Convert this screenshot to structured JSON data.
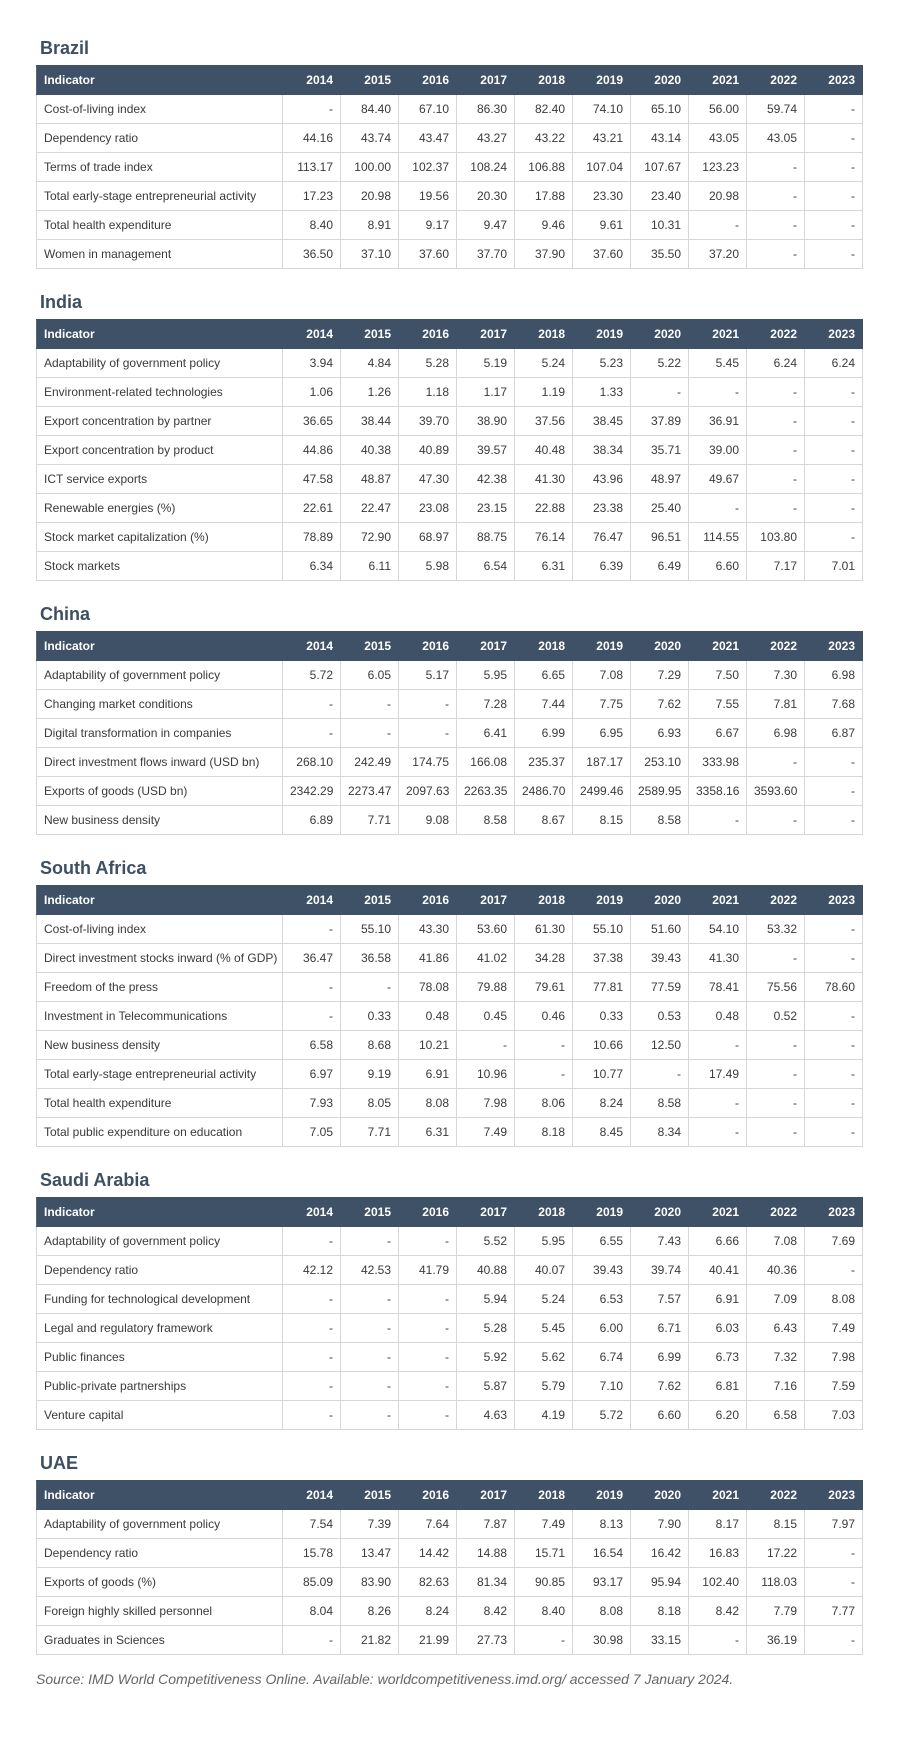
{
  "sections": [
    {
      "title": "Brazil",
      "header": [
        "Indicator",
        "2014",
        "2015",
        "2016",
        "2017",
        "2018",
        "2019",
        "2020",
        "2021",
        "2022",
        "2023"
      ],
      "rows": [
        [
          "Cost-of-living index",
          "-",
          "84.40",
          "67.10",
          "86.30",
          "82.40",
          "74.10",
          "65.10",
          "56.00",
          "59.74",
          "-"
        ],
        [
          "Dependency ratio",
          "44.16",
          "43.74",
          "43.47",
          "43.27",
          "43.22",
          "43.21",
          "43.14",
          "43.05",
          "43.05",
          "-"
        ],
        [
          "Terms of trade index",
          "113.17",
          "100.00",
          "102.37",
          "108.24",
          "106.88",
          "107.04",
          "107.67",
          "123.23",
          "-",
          "-"
        ],
        [
          "Total early-stage entrepreneurial activity",
          "17.23",
          "20.98",
          "19.56",
          "20.30",
          "17.88",
          "23.30",
          "23.40",
          "20.98",
          "-",
          "-"
        ],
        [
          "Total health expenditure",
          "8.40",
          "8.91",
          "9.17",
          "9.47",
          "9.46",
          "9.61",
          "10.31",
          "-",
          "-",
          "-"
        ],
        [
          "Women in management",
          "36.50",
          "37.10",
          "37.60",
          "37.70",
          "37.90",
          "37.60",
          "35.50",
          "37.20",
          "-",
          "-"
        ]
      ]
    },
    {
      "title": "India",
      "header": [
        "Indicator",
        "2014",
        "2015",
        "2016",
        "2017",
        "2018",
        "2019",
        "2020",
        "2021",
        "2022",
        "2023"
      ],
      "rows": [
        [
          "Adaptability of government policy",
          "3.94",
          "4.84",
          "5.28",
          "5.19",
          "5.24",
          "5.23",
          "5.22",
          "5.45",
          "6.24",
          "6.24"
        ],
        [
          "Environment-related technologies",
          "1.06",
          "1.26",
          "1.18",
          "1.17",
          "1.19",
          "1.33",
          "-",
          "-",
          "-",
          "-"
        ],
        [
          "Export concentration by partner",
          "36.65",
          "38.44",
          "39.70",
          "38.90",
          "37.56",
          "38.45",
          "37.89",
          "36.91",
          "-",
          "-"
        ],
        [
          "Export concentration by product",
          "44.86",
          "40.38",
          "40.89",
          "39.57",
          "40.48",
          "38.34",
          "35.71",
          "39.00",
          "-",
          "-"
        ],
        [
          "ICT service exports",
          "47.58",
          "48.87",
          "47.30",
          "42.38",
          "41.30",
          "43.96",
          "48.97",
          "49.67",
          "-",
          "-"
        ],
        [
          "Renewable energies (%)",
          "22.61",
          "22.47",
          "23.08",
          "23.15",
          "22.88",
          "23.38",
          "25.40",
          "-",
          "-",
          "-"
        ],
        [
          "Stock market capitalization (%)",
          "78.89",
          "72.90",
          "68.97",
          "88.75",
          "76.14",
          "76.47",
          "96.51",
          "114.55",
          "103.80",
          "-"
        ],
        [
          "Stock markets",
          "6.34",
          "6.11",
          "5.98",
          "6.54",
          "6.31",
          "6.39",
          "6.49",
          "6.60",
          "7.17",
          "7.01"
        ]
      ]
    },
    {
      "title": "China",
      "header": [
        "Indicator",
        "2014",
        "2015",
        "2016",
        "2017",
        "2018",
        "2019",
        "2020",
        "2021",
        "2022",
        "2023"
      ],
      "rows": [
        [
          "Adaptability of government policy",
          "5.72",
          "6.05",
          "5.17",
          "5.95",
          "6.65",
          "7.08",
          "7.29",
          "7.50",
          "7.30",
          "6.98"
        ],
        [
          "Changing market conditions",
          "-",
          "-",
          "-",
          "7.28",
          "7.44",
          "7.75",
          "7.62",
          "7.55",
          "7.81",
          "7.68"
        ],
        [
          "Digital transformation in companies",
          "-",
          "-",
          "-",
          "6.41",
          "6.99",
          "6.95",
          "6.93",
          "6.67",
          "6.98",
          "6.87"
        ],
        [
          "Direct investment flows inward (USD bn)",
          "268.10",
          "242.49",
          "174.75",
          "166.08",
          "235.37",
          "187.17",
          "253.10",
          "333.98",
          "-",
          "-"
        ],
        [
          "Exports of goods (USD bn)",
          "2342.29",
          "2273.47",
          "2097.63",
          "2263.35",
          "2486.70",
          "2499.46",
          "2589.95",
          "3358.16",
          "3593.60",
          "-"
        ],
        [
          "New business density",
          "6.89",
          "7.71",
          "9.08",
          "8.58",
          "8.67",
          "8.15",
          "8.58",
          "-",
          "-",
          "-"
        ]
      ]
    },
    {
      "title": "South Africa",
      "header": [
        "Indicator",
        "2014",
        "2015",
        "2016",
        "2017",
        "2018",
        "2019",
        "2020",
        "2021",
        "2022",
        "2023"
      ],
      "rows": [
        [
          "Cost-of-living index",
          "-",
          "55.10",
          "43.30",
          "53.60",
          "61.30",
          "55.10",
          "51.60",
          "54.10",
          "53.32",
          "-"
        ],
        [
          "Direct investment stocks inward (% of GDP)",
          "36.47",
          "36.58",
          "41.86",
          "41.02",
          "34.28",
          "37.38",
          "39.43",
          "41.30",
          "-",
          "-"
        ],
        [
          "Freedom of the press",
          "-",
          "-",
          "78.08",
          "79.88",
          "79.61",
          "77.81",
          "77.59",
          "78.41",
          "75.56",
          "78.60"
        ],
        [
          "Investment in Telecommunications",
          "-",
          "0.33",
          "0.48",
          "0.45",
          "0.46",
          "0.33",
          "0.53",
          "0.48",
          "0.52",
          "-"
        ],
        [
          "New business density",
          "6.58",
          "8.68",
          "10.21",
          "-",
          "-",
          "10.66",
          "12.50",
          "-",
          "-",
          "-"
        ],
        [
          "Total early-stage entrepreneurial activity",
          "6.97",
          "9.19",
          "6.91",
          "10.96",
          "-",
          "10.77",
          "-",
          "17.49",
          "-",
          "-"
        ],
        [
          "Total health expenditure",
          "7.93",
          "8.05",
          "8.08",
          "7.98",
          "8.06",
          "8.24",
          "8.58",
          "-",
          "-",
          "-"
        ],
        [
          "Total public expenditure on education",
          "7.05",
          "7.71",
          "6.31",
          "7.49",
          "8.18",
          "8.45",
          "8.34",
          "-",
          "-",
          "-"
        ]
      ]
    },
    {
      "title": "Saudi Arabia",
      "header": [
        "Indicator",
        "2014",
        "2015",
        "2016",
        "2017",
        "2018",
        "2019",
        "2020",
        "2021",
        "2022",
        "2023"
      ],
      "rows": [
        [
          "Adaptability of government policy",
          "-",
          "-",
          "-",
          "5.52",
          "5.95",
          "6.55",
          "7.43",
          "6.66",
          "7.08",
          "7.69"
        ],
        [
          "Dependency ratio",
          "42.12",
          "42.53",
          "41.79",
          "40.88",
          "40.07",
          "39.43",
          "39.74",
          "40.41",
          "40.36",
          "-"
        ],
        [
          "Funding for technological development",
          "-",
          "-",
          "-",
          "5.94",
          "5.24",
          "6.53",
          "7.57",
          "6.91",
          "7.09",
          "8.08"
        ],
        [
          "Legal and regulatory framework",
          "-",
          "-",
          "-",
          "5.28",
          "5.45",
          "6.00",
          "6.71",
          "6.03",
          "6.43",
          "7.49"
        ],
        [
          "Public finances",
          "-",
          "-",
          "-",
          "5.92",
          "5.62",
          "6.74",
          "6.99",
          "6.73",
          "7.32",
          "7.98"
        ],
        [
          "Public-private partnerships",
          "-",
          "-",
          "-",
          "5.87",
          "5.79",
          "7.10",
          "7.62",
          "6.81",
          "7.16",
          "7.59"
        ],
        [
          "Venture capital",
          "-",
          "-",
          "-",
          "4.63",
          "4.19",
          "5.72",
          "6.60",
          "6.20",
          "6.58",
          "7.03"
        ]
      ]
    },
    {
      "title": "UAE",
      "header": [
        "Indicator",
        "2014",
        "2015",
        "2016",
        "2017",
        "2018",
        "2019",
        "2020",
        "2021",
        "2022",
        "2023"
      ],
      "rows": [
        [
          "Adaptability of government policy",
          "7.54",
          "7.39",
          "7.64",
          "7.87",
          "7.49",
          "8.13",
          "7.90",
          "8.17",
          "8.15",
          "7.97"
        ],
        [
          "Dependency ratio",
          "15.78",
          "13.47",
          "14.42",
          "14.88",
          "15.71",
          "16.54",
          "16.42",
          "16.83",
          "17.22",
          "-"
        ],
        [
          "Exports of goods (%)",
          "85.09",
          "83.90",
          "82.63",
          "81.34",
          "90.85",
          "93.17",
          "95.94",
          "102.40",
          "118.03",
          "-"
        ],
        [
          "Foreign highly skilled personnel",
          "8.04",
          "8.26",
          "8.24",
          "8.42",
          "8.40",
          "8.08",
          "8.18",
          "8.42",
          "7.79",
          "7.77"
        ],
        [
          "Graduates in Sciences",
          "-",
          "21.82",
          "21.99",
          "27.73",
          "-",
          "30.98",
          "33.15",
          "-",
          "36.19",
          "-"
        ]
      ]
    }
  ],
  "source": "Source: IMD World Competitiveness Online. Available: worldcompetitiveness.imd.org/ accessed 7 January 2024."
}
